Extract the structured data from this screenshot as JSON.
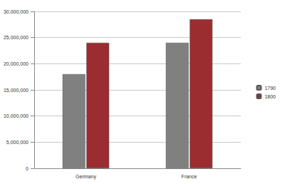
{
  "chart_data": {
    "type": "bar",
    "categories": [
      "Germany",
      "France"
    ],
    "series": [
      {
        "name": "1790",
        "color": "#808080",
        "values": [
          18000000,
          24000000
        ]
      },
      {
        "name": "1800",
        "color": "#9b2d30",
        "values": [
          24000000,
          28500000
        ]
      }
    ],
    "ylim": [
      0,
      30000000
    ],
    "yticks": [
      0,
      5000000,
      10000000,
      15000000,
      20000000,
      25000000,
      30000000
    ],
    "grid": true,
    "legend": "right"
  }
}
